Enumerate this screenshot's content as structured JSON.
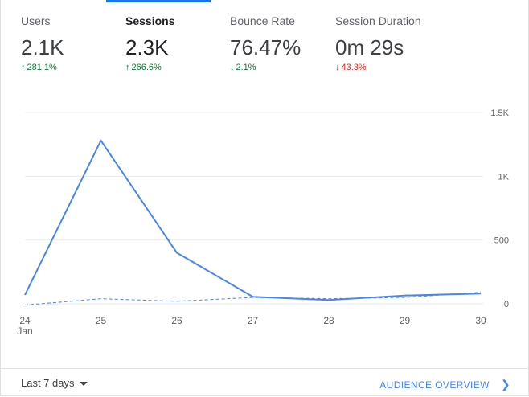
{
  "metrics": [
    {
      "label": "Users",
      "value": "2.1K",
      "change": "281.1%",
      "direction": "up",
      "active": false
    },
    {
      "label": "Sessions",
      "value": "2.3K",
      "change": "266.6%",
      "direction": "up",
      "active": true
    },
    {
      "label": "Bounce Rate",
      "value": "76.47%",
      "change": "2.1%",
      "direction": "down",
      "active": false
    },
    {
      "label": "Session Duration",
      "value": "0m 29s",
      "change": "43.3%",
      "direction": "down",
      "active": false
    }
  ],
  "footer": {
    "date_range_label": "Last 7 days",
    "overview_link": "AUDIENCE OVERVIEW"
  },
  "colors": {
    "accent": "#1a73e8",
    "series": "#4a86e8",
    "positive": "#137333",
    "negative": "#d93025"
  },
  "chart_data": {
    "type": "line",
    "x": [
      "24",
      "25",
      "26",
      "27",
      "28",
      "29",
      "30"
    ],
    "x_sublabels": [
      "Jan",
      "",
      "",
      "",
      "",
      "",
      ""
    ],
    "y_ticks": [
      {
        "value": 0,
        "label": "0"
      },
      {
        "value": 500,
        "label": "500"
      },
      {
        "value": 1000,
        "label": "1K"
      },
      {
        "value": 1500,
        "label": "1.5K"
      }
    ],
    "ylim": [
      0,
      1500
    ],
    "y_axis_side": "right",
    "series": [
      {
        "values": [
          70,
          1280,
          400,
          55,
          30,
          65,
          80
        ],
        "style": "solid"
      },
      {
        "values": [
          -10,
          40,
          20,
          50,
          40,
          50,
          90
        ],
        "style": "dashed"
      }
    ]
  }
}
